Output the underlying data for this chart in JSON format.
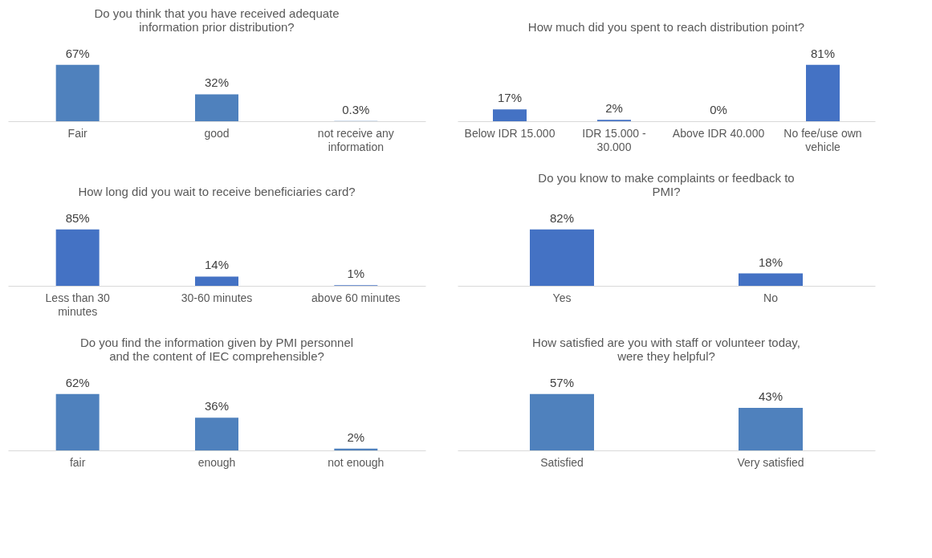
{
  "chart_data": [
    {
      "type": "bar",
      "title": "Do you think that you have received adequate\ninformation prior distribution?",
      "categories": [
        "Fair",
        "good",
        "not receive any information"
      ],
      "values": [
        67,
        32,
        0.3
      ],
      "value_labels": [
        "67%",
        "32%",
        "0.3%"
      ],
      "color": "#4f81bd",
      "grid": false,
      "legend": false
    },
    {
      "type": "bar",
      "title": "How much did you spent to reach distribution point?",
      "categories": [
        "Below IDR 15.000",
        "IDR 15.000 - 30.000",
        "Above IDR 40.000",
        "No fee/use own vehicle"
      ],
      "values": [
        17,
        2,
        0,
        81
      ],
      "value_labels": [
        "17%",
        "2%",
        "0%",
        "81%"
      ],
      "color": "#4472c4",
      "grid": false,
      "legend": false
    },
    {
      "type": "bar",
      "title": "How long did you wait to receive beneficiaries card?",
      "categories": [
        "Less than 30 minutes",
        "30-60 minutes",
        "above 60 minutes"
      ],
      "values": [
        85,
        14,
        1
      ],
      "value_labels": [
        "85%",
        "14%",
        "1%"
      ],
      "color": "#4472c4",
      "grid": false,
      "legend": false
    },
    {
      "type": "bar",
      "title": "Do you know to make complaints or feedback to\nPMI?",
      "categories": [
        "Yes",
        "No"
      ],
      "values": [
        82,
        18
      ],
      "value_labels": [
        "82%",
        "18%"
      ],
      "color": "#4472c4",
      "grid": false,
      "legend": false
    },
    {
      "type": "bar",
      "title": "Do you find the information given by PMI personnel\nand the content of IEC comprehensible?",
      "categories": [
        "fair",
        "enough",
        "not enough"
      ],
      "values": [
        62,
        36,
        2
      ],
      "value_labels": [
        "62%",
        "36%",
        "2%"
      ],
      "color": "#4f81bd",
      "grid": false,
      "legend": false
    },
    {
      "type": "bar",
      "title": "How satisfied are you with staff or volunteer today,\nwere they helpful?",
      "categories": [
        "Satisfied",
        "Very satisfied"
      ],
      "values": [
        57,
        43
      ],
      "value_labels": [
        "57%",
        "43%"
      ],
      "color": "#4f81bd",
      "grid": false,
      "legend": false
    }
  ]
}
